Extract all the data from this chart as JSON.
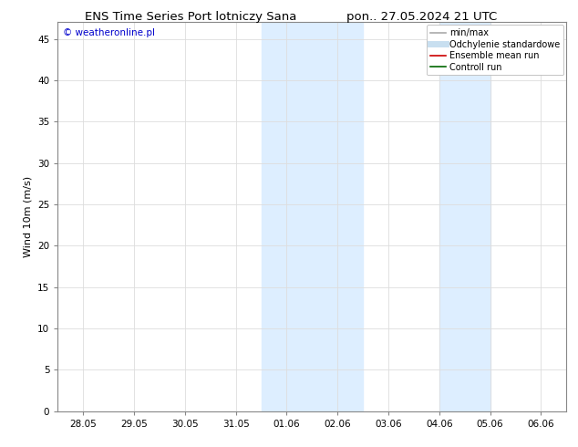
{
  "title_left": "ENS Time Series Port lotniczy Sana",
  "title_right": "pon.. 27.05.2024 21 UTC",
  "ylabel": "Wind 10m (m/s)",
  "watermark": "© weatheronline.pl",
  "xtick_labels": [
    "28.05",
    "29.05",
    "30.05",
    "31.05",
    "01.06",
    "02.06",
    "03.06",
    "04.06",
    "05.06",
    "06.06"
  ],
  "xtick_positions": [
    0,
    1,
    2,
    3,
    4,
    5,
    6,
    7,
    8,
    9
  ],
  "xlim": [
    -0.5,
    9.5
  ],
  "ylim": [
    0,
    47
  ],
  "ytick_positions": [
    0,
    5,
    10,
    15,
    20,
    25,
    30,
    35,
    40,
    45
  ],
  "ytick_labels": [
    "0",
    "5",
    "10",
    "15",
    "20",
    "25",
    "30",
    "35",
    "40",
    "45"
  ],
  "shaded_regions": [
    {
      "xstart": 3.5,
      "xend": 5.5
    },
    {
      "xstart": 7.0,
      "xend": 8.0
    }
  ],
  "shade_color": "#ddeeff",
  "legend_entries": [
    {
      "label": "min/max",
      "color": "#aaaaaa",
      "lw": 1.2,
      "style": "-"
    },
    {
      "label": "Odchylenie standardowe",
      "color": "#c8dff0",
      "lw": 5,
      "style": "-"
    },
    {
      "label": "Ensemble mean run",
      "color": "#cc0000",
      "lw": 1.2,
      "style": "-"
    },
    {
      "label": "Controll run",
      "color": "#006600",
      "lw": 1.2,
      "style": "-"
    }
  ],
  "bg_color": "#ffffff",
  "title_fontsize": 9.5,
  "axis_fontsize": 8,
  "tick_fontsize": 7.5,
  "legend_fontsize": 7,
  "watermark_color": "#0000cc",
  "watermark_fontsize": 7.5,
  "grid_color": "#dddddd",
  "spine_color": "#888888"
}
